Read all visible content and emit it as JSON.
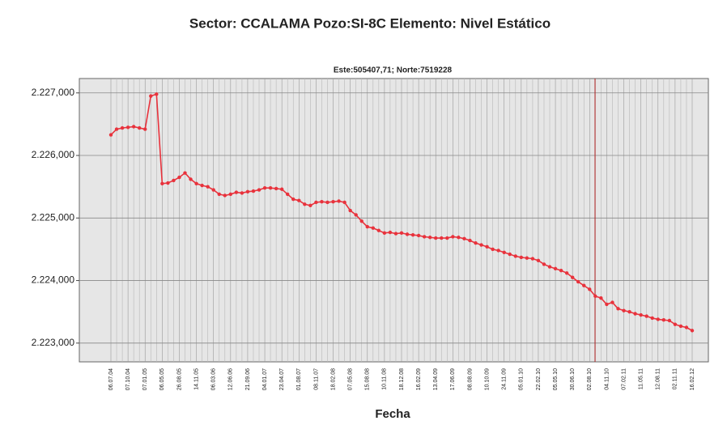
{
  "chart_data": {
    "type": "line",
    "title": "Sector: CCALAMA  Pozo:SI-8C  Elemento: Nivel Estático",
    "subtitle": "Este:505407,71; Norte:7519228",
    "x_label": "Fecha",
    "categories": [
      "06.07.04",
      null,
      null,
      "07.10.04",
      null,
      null,
      "07.01.05",
      null,
      null,
      "06.05.05",
      null,
      null,
      "26.08.05",
      null,
      null,
      "14.11.05",
      null,
      null,
      "06.03.06",
      null,
      null,
      "12.06.06",
      null,
      null,
      "21.09.06",
      null,
      null,
      "04.01.07",
      null,
      null,
      "23.04.07",
      null,
      null,
      "01.08.07",
      null,
      null,
      "08.11.07",
      null,
      null,
      "18.02.08",
      null,
      null,
      "07.05.08",
      null,
      null,
      "15.08.08",
      null,
      null,
      "10.11.08",
      null,
      null,
      "18.12.08",
      null,
      null,
      "16.02.09",
      null,
      null,
      "13.04.09",
      null,
      null,
      "17.06.09",
      null,
      null,
      "08.08.09",
      null,
      null,
      "10.10.09",
      null,
      null,
      "24.11.09",
      null,
      null,
      "05.01.10",
      null,
      null,
      "22.02.10",
      null,
      null,
      "05.05.10",
      null,
      null,
      "30.06.10",
      null,
      null,
      "02.08.10",
      null,
      null,
      "04.11.10",
      null,
      null,
      "07.02.11",
      null,
      null,
      "11.05.11",
      null,
      null,
      "12.08.11",
      null,
      null,
      "02.11.11",
      null,
      null,
      "16.02.12"
    ],
    "series": [
      {
        "name": "Nivel Estático",
        "color": "#e8323c",
        "values": [
          2226.33,
          2226.42,
          2226.44,
          2226.45,
          2226.46,
          2226.44,
          2226.42,
          2226.95,
          2226.98,
          2225.55,
          2225.56,
          2225.6,
          2225.65,
          2225.72,
          2225.62,
          2225.55,
          2225.52,
          2225.5,
          2225.45,
          2225.38,
          2225.36,
          2225.38,
          2225.41,
          2225.4,
          2225.42,
          2225.43,
          2225.45,
          2225.48,
          2225.48,
          2225.47,
          2225.46,
          2225.38,
          2225.3,
          2225.28,
          2225.22,
          2225.2,
          2225.25,
          2225.26,
          2225.25,
          2225.26,
          2225.27,
          2225.25,
          2225.12,
          2225.05,
          2224.95,
          2224.86,
          2224.84,
          2224.8,
          2224.76,
          2224.77,
          2224.75,
          2224.76,
          2224.74,
          2224.73,
          2224.72,
          2224.7,
          2224.69,
          2224.68,
          2224.68,
          2224.68,
          2224.7,
          2224.69,
          2224.67,
          2224.64,
          2224.6,
          2224.57,
          2224.54,
          2224.5,
          2224.48,
          2224.45,
          2224.42,
          2224.39,
          2224.37,
          2224.36,
          2224.35,
          2224.32,
          2224.26,
          2224.22,
          2224.19,
          2224.16,
          2224.12,
          2224.05,
          2223.98,
          2223.92,
          2223.86,
          2223.75,
          2223.72,
          2223.62,
          2223.65,
          2223.55,
          2223.52,
          2223.5,
          2223.47,
          2223.45,
          2223.43,
          2223.4,
          2223.38,
          2223.37,
          2223.36,
          2223.3,
          2223.27,
          2223.25,
          2223.2
        ]
      }
    ],
    "ylim": [
      2222.7,
      2227.23
    ],
    "yticks": [
      {
        "value": 2223,
        "label": "2.223,000"
      },
      {
        "value": 2224,
        "label": "2.224,000"
      },
      {
        "value": 2225,
        "label": "2.225,000"
      },
      {
        "value": 2226,
        "label": "2.226,000"
      },
      {
        "value": 2227,
        "label": "2.227,000"
      }
    ],
    "grid": true
  }
}
